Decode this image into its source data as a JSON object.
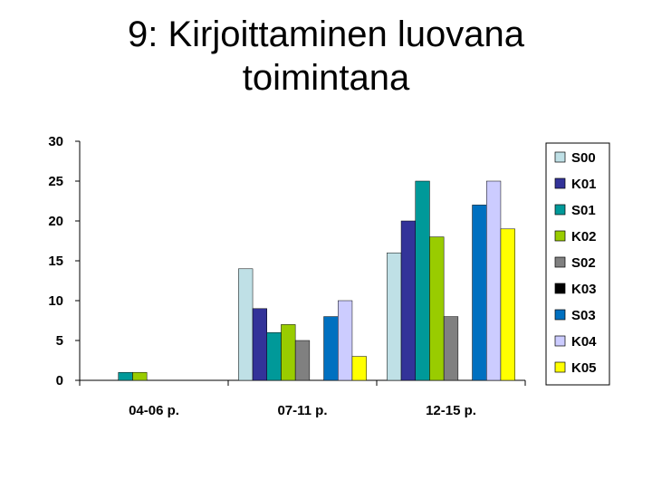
{
  "title": "9: Kirjoittaminen luovana toimintana",
  "chart_data": {
    "type": "bar",
    "title": "9: Kirjoittaminen luovana toimintana",
    "categories": [
      "04-06 p.",
      "07-11 p.",
      "12-15 p."
    ],
    "ylim": [
      0,
      30
    ],
    "yticks": [
      0,
      5,
      10,
      15,
      20,
      25,
      30
    ],
    "grid": false,
    "legend_position": "right",
    "series": [
      {
        "name": "S00",
        "color": "#bfe0e6",
        "values": [
          0,
          14,
          16
        ]
      },
      {
        "name": "K01",
        "color": "#333399",
        "values": [
          0,
          9,
          20
        ]
      },
      {
        "name": "S01",
        "color": "#009999",
        "values": [
          1,
          6,
          25
        ]
      },
      {
        "name": "K02",
        "color": "#99cc00",
        "values": [
          1,
          7,
          18
        ]
      },
      {
        "name": "S02",
        "color": "#808080",
        "values": [
          0,
          5,
          8
        ]
      },
      {
        "name": "K03",
        "color": "#000000",
        "values": [
          0,
          0,
          0
        ]
      },
      {
        "name": "S03",
        "color": "#0070c0",
        "values": [
          0,
          8,
          22
        ]
      },
      {
        "name": "K04",
        "color": "#ccccff",
        "values": [
          0,
          10,
          25
        ]
      },
      {
        "name": "K05",
        "color": "#ffff00",
        "values": [
          0,
          3,
          19
        ]
      }
    ]
  }
}
